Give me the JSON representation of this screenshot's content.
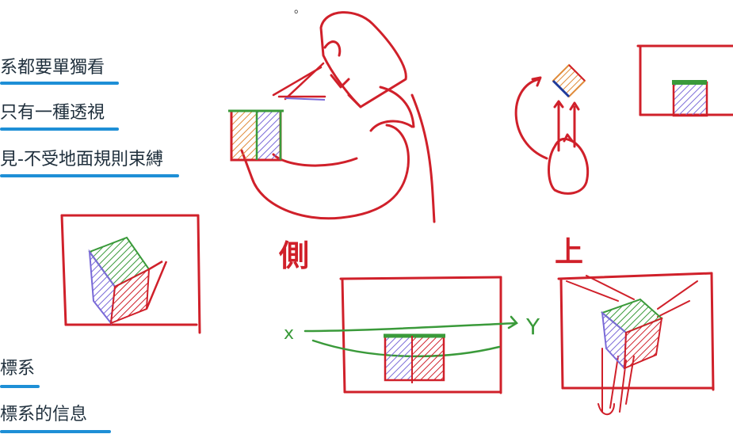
{
  "notes": [
    {
      "text": "系都要單獨看"
    },
    {
      "text": "只有一種透視"
    },
    {
      "text": "見-不受地面規則束縛"
    },
    {
      "text": "標系"
    },
    {
      "text": "標系的信息"
    }
  ],
  "labels": {
    "side": "側",
    "top": "上",
    "axis_x": "x",
    "axis_y": "Y",
    "dot": "。"
  },
  "colors": {
    "ink_red": "#d0202a",
    "green": "#3a9a3a",
    "purple": "#7a6ad8",
    "orange": "#e08b3a",
    "blue": "#1e8fd6"
  }
}
